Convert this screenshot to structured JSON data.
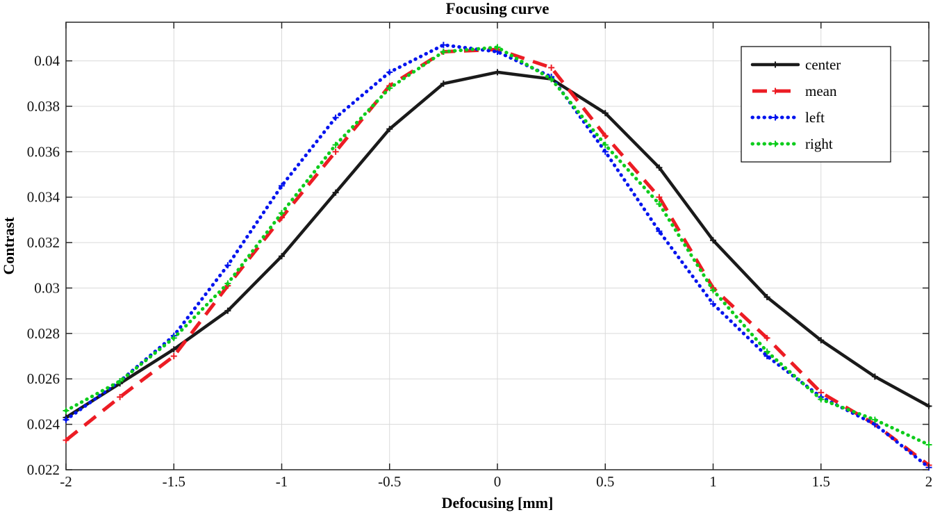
{
  "title": "Focusing curve",
  "chart_data": {
    "type": "line",
    "title": "Focusing curve",
    "xlabel": "Defocusing [mm]",
    "ylabel": "Contrast",
    "xlim": [
      -2,
      2
    ],
    "ylim": [
      0.022,
      0.0417
    ],
    "x_ticks": [
      -2,
      -1.5,
      -1,
      -0.5,
      0,
      0.5,
      1,
      1.5,
      2
    ],
    "y_ticks": [
      0.022,
      0.024,
      0.026,
      0.028,
      0.03,
      0.032,
      0.034,
      0.036,
      0.038,
      0.04
    ],
    "grid": true,
    "legend_position": "top-right",
    "x": [
      -2,
      -1.75,
      -1.5,
      -1.25,
      -1,
      -0.75,
      -0.5,
      -0.25,
      0,
      0.25,
      0.5,
      0.75,
      1,
      1.25,
      1.5,
      1.75,
      2
    ],
    "series": [
      {
        "name": "center",
        "color": "#1a1a1a",
        "line_style": "solid",
        "marker": "plus",
        "values": [
          0.0243,
          0.0258,
          0.0273,
          0.029,
          0.0314,
          0.0342,
          0.037,
          0.039,
          0.0395,
          0.0392,
          0.0377,
          0.0353,
          0.0321,
          0.0296,
          0.0277,
          0.0261,
          0.0248
        ]
      },
      {
        "name": "mean",
        "color": "#ec1c24",
        "line_style": "dashed",
        "marker": "plus",
        "values": [
          0.0233,
          0.0252,
          0.027,
          0.0301,
          0.0331,
          0.036,
          0.0389,
          0.0404,
          0.0405,
          0.0397,
          0.0367,
          0.034,
          0.03,
          0.0278,
          0.0254,
          0.024,
          0.0222
        ]
      },
      {
        "name": "left",
        "color": "#0013ee",
        "line_style": "dotted",
        "marker": "asterisk",
        "values": [
          0.0242,
          0.0259,
          0.0279,
          0.031,
          0.0345,
          0.0375,
          0.0395,
          0.0407,
          0.0404,
          0.0393,
          0.036,
          0.0325,
          0.0293,
          0.027,
          0.0252,
          0.024,
          0.0221
        ]
      },
      {
        "name": "right",
        "color": "#0ecc1c",
        "line_style": "dotted",
        "marker": "asterisk",
        "values": [
          0.0246,
          0.0259,
          0.0278,
          0.0302,
          0.0333,
          0.0363,
          0.0388,
          0.0404,
          0.0406,
          0.0392,
          0.0363,
          0.0337,
          0.0299,
          0.0272,
          0.0251,
          0.0242,
          0.0231
        ]
      }
    ]
  }
}
